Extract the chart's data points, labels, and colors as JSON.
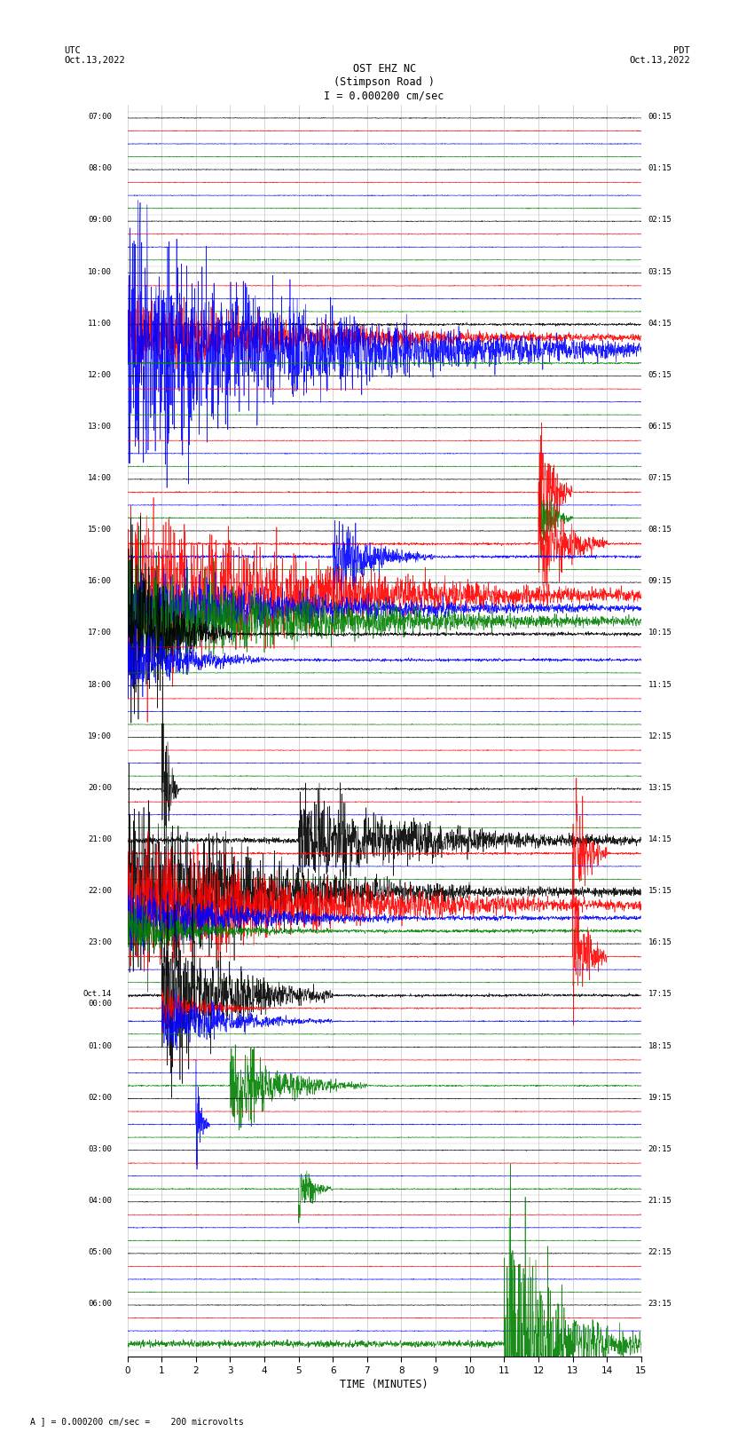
{
  "title_line1": "OST EHZ NC",
  "title_line2": "(Stimpson Road )",
  "title_line3": "I = 0.000200 cm/sec",
  "left_header": "UTC\nOct.13,2022",
  "right_header": "PDT\nOct.13,2022",
  "xlabel": "TIME (MINUTES)",
  "footer": "A ] = 0.000200 cm/sec =    200 microvolts",
  "bg_color": "#ffffff",
  "grid_color": "#999999",
  "trace_colors": [
    "black",
    "red",
    "blue",
    "green"
  ],
  "xmin": 0,
  "xmax": 15,
  "xticks": [
    0,
    1,
    2,
    3,
    4,
    5,
    6,
    7,
    8,
    9,
    10,
    11,
    12,
    13,
    14,
    15
  ],
  "fig_width": 8.5,
  "fig_height": 16.13,
  "left_time_labels": [
    "07:00",
    "08:00",
    "09:00",
    "10:00",
    "11:00",
    "12:00",
    "13:00",
    "14:00",
    "15:00",
    "16:00",
    "17:00",
    "18:00",
    "19:00",
    "20:00",
    "21:00",
    "22:00",
    "23:00",
    "Oct.14\n00:00",
    "01:00",
    "02:00",
    "03:00",
    "04:00",
    "05:00",
    "06:00"
  ],
  "right_time_labels": [
    "00:15",
    "01:15",
    "02:15",
    "03:15",
    "04:15",
    "05:15",
    "06:15",
    "07:15",
    "08:15",
    "09:15",
    "10:15",
    "11:15",
    "12:15",
    "13:15",
    "14:15",
    "15:15",
    "16:15",
    "17:15",
    "18:15",
    "19:15",
    "20:15",
    "21:15",
    "22:15",
    "23:15"
  ],
  "n_groups": 24,
  "num_traces_per_group": 4
}
